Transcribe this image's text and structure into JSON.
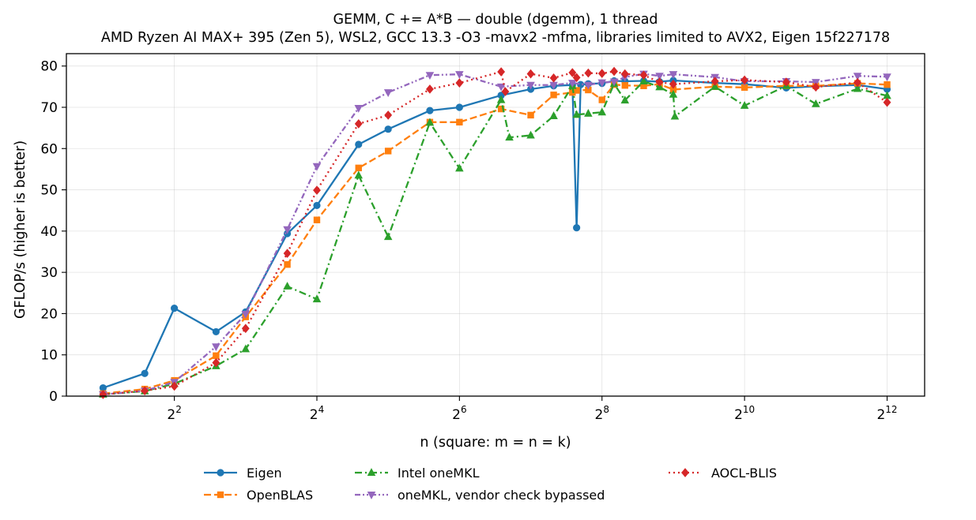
{
  "chart_data": {
    "type": "line",
    "title": "GEMM, C += A*B — double (dgemm), 1 thread",
    "subtitle": "AMD Ryzen AI MAX+ 395 (Zen 5), WSL2, GCC 13.3 -O3 -mavx2 -mfma, libraries limited to AVX2, Eigen 15f227178",
    "xlabel": "n (square: m = n = k)",
    "ylabel": "GFLOP/s (higher is better)",
    "xscale": "log2",
    "xlim": [
      1.4,
      5900
    ],
    "ylim": [
      0,
      83
    ],
    "xticks": [
      {
        "value": 4,
        "base": "2",
        "exp": "2"
      },
      {
        "value": 16,
        "base": "2",
        "exp": "4"
      },
      {
        "value": 64,
        "base": "2",
        "exp": "6"
      },
      {
        "value": 256,
        "base": "2",
        "exp": "8"
      },
      {
        "value": 1024,
        "base": "2",
        "exp": "10"
      },
      {
        "value": 4096,
        "base": "2",
        "exp": "12"
      }
    ],
    "yticks": [
      "0",
      "10",
      "20",
      "30",
      "40",
      "50",
      "60",
      "70",
      "80"
    ],
    "grid": true,
    "legend_position": "bottom-center",
    "series": [
      {
        "name": "Eigen",
        "color": "#1f77b4",
        "linestyle": "solid",
        "marker": "circle",
        "points": [
          [
            2,
            2.0
          ],
          [
            3,
            5.5
          ],
          [
            4,
            21.3
          ],
          [
            6,
            15.6
          ],
          [
            8,
            20.4
          ],
          [
            12,
            39.4
          ],
          [
            16,
            46.2
          ],
          [
            24,
            61.0
          ],
          [
            32,
            64.7
          ],
          [
            48,
            69.2
          ],
          [
            64,
            70.0
          ],
          [
            96,
            72.9
          ],
          [
            128,
            74.4
          ],
          [
            160,
            75.2
          ],
          [
            192,
            75.4
          ],
          [
            200,
            40.8
          ],
          [
            208,
            75.5
          ],
          [
            224,
            75.7
          ],
          [
            256,
            75.8
          ],
          [
            288,
            76.4
          ],
          [
            320,
            76.3
          ],
          [
            384,
            76.4
          ],
          [
            448,
            76.2
          ],
          [
            512,
            76.5
          ],
          [
            768,
            75.9
          ],
          [
            1024,
            75.6
          ],
          [
            1536,
            74.7
          ],
          [
            2048,
            75.1
          ],
          [
            3072,
            75.4
          ],
          [
            4096,
            74.4
          ]
        ]
      },
      {
        "name": "OpenBLAS",
        "color": "#ff7f0e",
        "linestyle": "dashed",
        "marker": "square",
        "points": [
          [
            2,
            0.6
          ],
          [
            3,
            1.7
          ],
          [
            4,
            3.8
          ],
          [
            6,
            9.8
          ],
          [
            8,
            19.2
          ],
          [
            12,
            31.9
          ],
          [
            16,
            42.7
          ],
          [
            24,
            55.3
          ],
          [
            32,
            59.4
          ],
          [
            48,
            66.4
          ],
          [
            64,
            66.4
          ],
          [
            96,
            69.6
          ],
          [
            128,
            68.1
          ],
          [
            160,
            73.0
          ],
          [
            192,
            73.6
          ],
          [
            200,
            74.1
          ],
          [
            224,
            74.2
          ],
          [
            256,
            71.8
          ],
          [
            288,
            75.5
          ],
          [
            320,
            75.3
          ],
          [
            384,
            75.2
          ],
          [
            448,
            75.6
          ],
          [
            512,
            74.3
          ],
          [
            768,
            75.0
          ],
          [
            1024,
            74.8
          ],
          [
            1536,
            75.2
          ],
          [
            2048,
            75.2
          ],
          [
            3072,
            75.8
          ],
          [
            4096,
            75.5
          ]
        ]
      },
      {
        "name": "Intel oneMKL",
        "color": "#2ca02c",
        "linestyle": "dashdot",
        "marker": "triangle-up",
        "points": [
          [
            2,
            0.4
          ],
          [
            3,
            1.2
          ],
          [
            4,
            3.0
          ],
          [
            6,
            7.3
          ],
          [
            8,
            11.4
          ],
          [
            12,
            26.6
          ],
          [
            16,
            23.5
          ],
          [
            24,
            53.5
          ],
          [
            32,
            38.6
          ],
          [
            48,
            66.3
          ],
          [
            64,
            55.2
          ],
          [
            96,
            71.8
          ],
          [
            104,
            62.7
          ],
          [
            128,
            63.2
          ],
          [
            160,
            67.9
          ],
          [
            192,
            75.2
          ],
          [
            200,
            68.2
          ],
          [
            224,
            68.5
          ],
          [
            256,
            68.8
          ],
          [
            288,
            75.7
          ],
          [
            320,
            71.7
          ],
          [
            384,
            76.3
          ],
          [
            448,
            74.9
          ],
          [
            512,
            73.1
          ],
          [
            520,
            67.8
          ],
          [
            768,
            75.0
          ],
          [
            1024,
            70.4
          ],
          [
            1536,
            75.2
          ],
          [
            2048,
            70.8
          ],
          [
            3072,
            74.5
          ],
          [
            4096,
            72.8
          ]
        ]
      },
      {
        "name": "oneMKL, vendor check bypassed",
        "color": "#9467bd",
        "linestyle": "dashdotdot",
        "marker": "triangle-down",
        "points": [
          [
            2,
            0.4
          ],
          [
            3,
            1.3
          ],
          [
            4,
            3.4
          ],
          [
            6,
            12.0
          ],
          [
            8,
            19.9
          ],
          [
            12,
            40.4
          ],
          [
            16,
            55.7
          ],
          [
            24,
            69.8
          ],
          [
            32,
            73.6
          ],
          [
            48,
            77.8
          ],
          [
            64,
            78.0
          ],
          [
            96,
            75.0
          ],
          [
            128,
            75.4
          ],
          [
            160,
            75.4
          ],
          [
            192,
            75.9
          ],
          [
            224,
            75.4
          ],
          [
            256,
            76.0
          ],
          [
            288,
            76.2
          ],
          [
            320,
            77.3
          ],
          [
            384,
            78.1
          ],
          [
            448,
            77.6
          ],
          [
            512,
            78.0
          ],
          [
            768,
            77.3
          ],
          [
            1024,
            76.3
          ],
          [
            1536,
            76.3
          ],
          [
            2048,
            76.1
          ],
          [
            3072,
            77.6
          ],
          [
            4096,
            77.4
          ]
        ]
      },
      {
        "name": "AOCL-BLIS",
        "color": "#d62728",
        "linestyle": "dotted",
        "marker": "diamond",
        "points": [
          [
            2,
            0.4
          ],
          [
            3,
            1.3
          ],
          [
            4,
            2.4
          ],
          [
            6,
            8.1
          ],
          [
            8,
            16.4
          ],
          [
            12,
            34.6
          ],
          [
            16,
            49.9
          ],
          [
            24,
            66.0
          ],
          [
            32,
            68.1
          ],
          [
            48,
            74.4
          ],
          [
            64,
            75.9
          ],
          [
            96,
            78.6
          ],
          [
            100,
            73.8
          ],
          [
            128,
            78.1
          ],
          [
            160,
            77.1
          ],
          [
            192,
            78.4
          ],
          [
            200,
            77.2
          ],
          [
            224,
            78.3
          ],
          [
            256,
            78.2
          ],
          [
            288,
            78.7
          ],
          [
            320,
            78.1
          ],
          [
            384,
            77.8
          ],
          [
            448,
            76.1
          ],
          [
            512,
            75.6
          ],
          [
            768,
            76.3
          ],
          [
            1024,
            76.6
          ],
          [
            1536,
            76.1
          ],
          [
            2048,
            74.9
          ],
          [
            3072,
            76.0
          ],
          [
            4096,
            71.2
          ]
        ]
      }
    ]
  }
}
